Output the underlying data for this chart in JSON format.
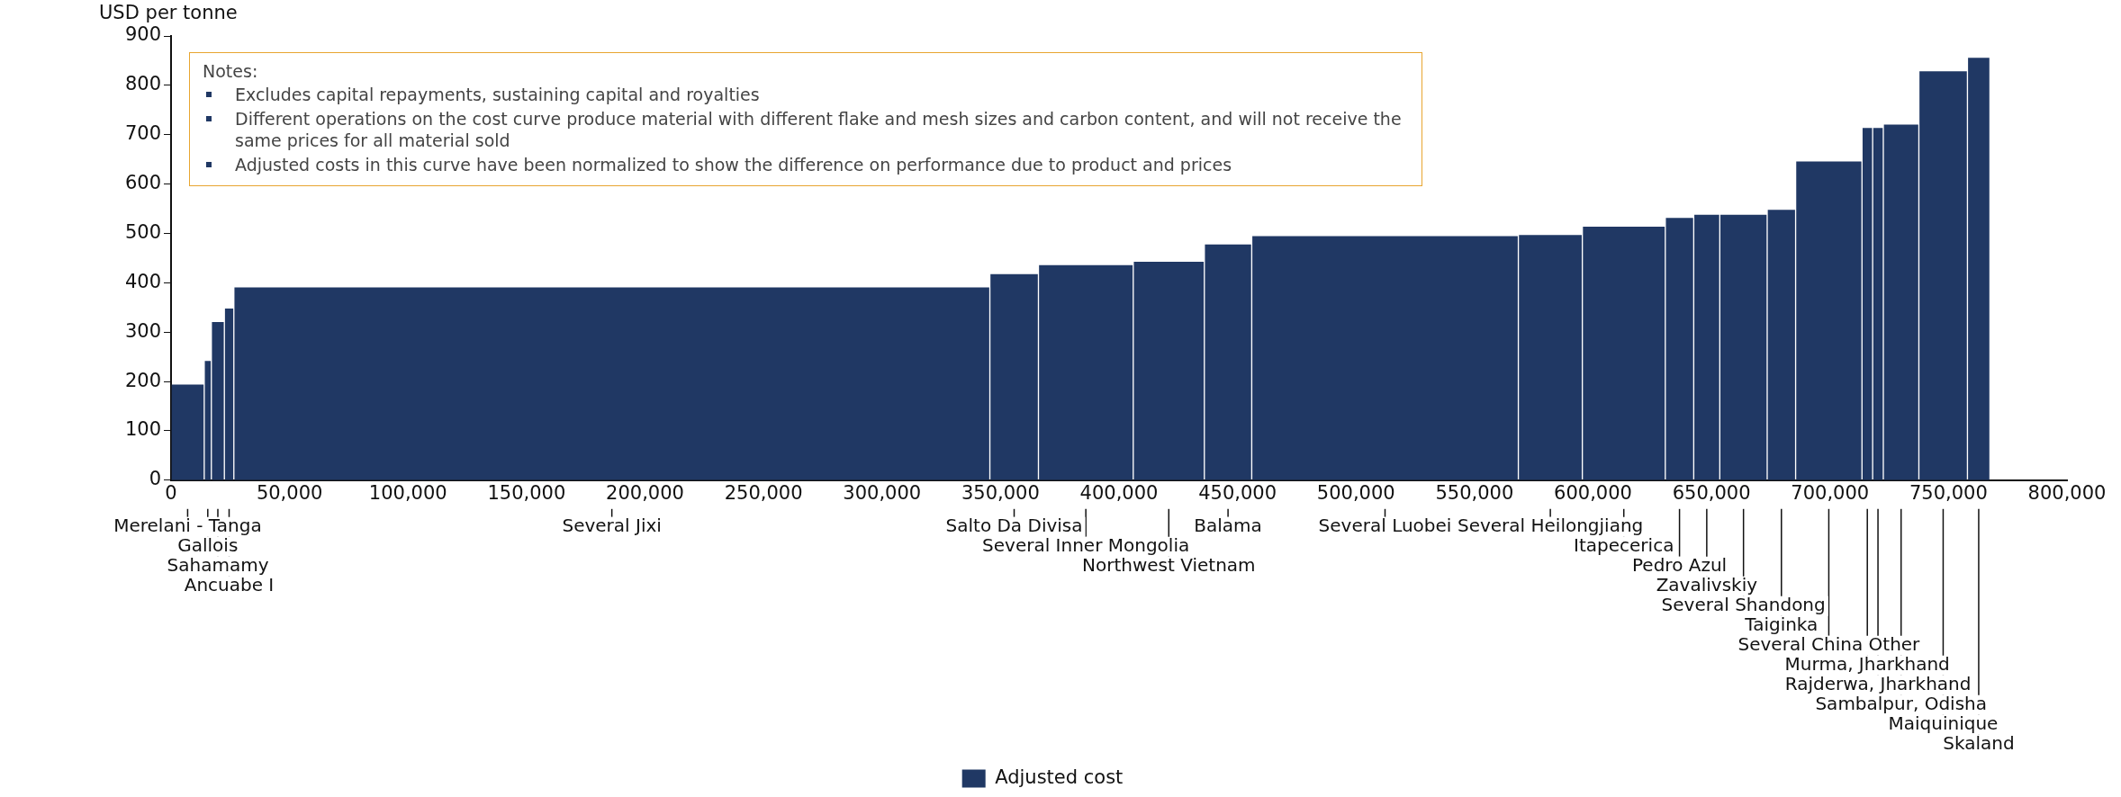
{
  "chart_data": {
    "type": "histogram",
    "ylabel": "USD per tonne",
    "bins": [
      0,
      14000,
      17000,
      22500,
      26500,
      345500,
      366000,
      406000,
      436000,
      456000,
      568500,
      595500,
      630500,
      642500,
      653500,
      673500,
      685500,
      713500,
      718000,
      722500,
      737500,
      758000,
      767500
    ],
    "series": [
      {
        "name": "Adjusted cost",
        "color": "#203864",
        "values": [
          193,
          241,
          320,
          347,
          390,
          417,
          435,
          442,
          477,
          494,
          496,
          513,
          531,
          537,
          537,
          547,
          645,
          713,
          713,
          720,
          828,
          855
        ]
      }
    ],
    "xlim": [
      0,
      800000
    ],
    "xticks": [
      0,
      {
        "value": 50000,
        "label": "50,000"
      },
      {
        "value": 100000,
        "label": "100,000"
      },
      {
        "value": 150000,
        "label": "150,000"
      },
      {
        "value": 200000,
        "label": "200,000"
      },
      {
        "value": 250000,
        "label": "250,000"
      },
      {
        "value": 300000,
        "label": "300,000"
      },
      {
        "value": 350000,
        "label": "350,000"
      },
      {
        "value": 400000,
        "label": "400,000"
      },
      {
        "value": 450000,
        "label": "450,000"
      },
      {
        "value": 500000,
        "label": "500,000"
      },
      {
        "value": 550000,
        "label": "550,000"
      },
      {
        "value": 600000,
        "label": "600,000"
      },
      {
        "value": 650000,
        "label": "650,000"
      },
      {
        "value": 700000,
        "label": "700,000"
      },
      {
        "value": 750000,
        "label": "750,000"
      },
      {
        "value": 800000,
        "label": "800,000"
      }
    ],
    "ylim": [
      0,
      900
    ],
    "yticks": [
      0,
      100,
      200,
      300,
      400,
      500,
      600,
      700,
      800,
      900
    ],
    "grid": false,
    "legend": "bottom",
    "annotations": [
      "Notes:",
      "Excludes capital repayments, sustaining capital and royalties",
      "Different operations on the cost curve produce material with different flake and mesh sizes and carbon content, and will not receive the same prices for all material sold",
      "Adjusted costs in this curve have been normalized to show the difference on performance due to product and prices",
      {
        "text": "Merelani - Tanga",
        "x": 7000
      },
      {
        "text": "Gallois",
        "x": 15500
      },
      {
        "text": "Sahamamy",
        "x": 19750
      },
      {
        "text": "Ancuabe I",
        "x": 24500
      },
      {
        "text": "Several Jixi",
        "x": 186000
      },
      {
        "text": "Salto Da Divisa",
        "x": 355750
      },
      {
        "text": "Several Inner Mongolia",
        "x": 386000
      },
      {
        "text": "Northwest Vietnam",
        "x": 421000
      },
      {
        "text": "Balama",
        "x": 446000
      },
      {
        "text": "Several Luobei",
        "x": 512250
      },
      {
        "text": "Several Heilongjiang",
        "x": 582000
      },
      {
        "text": "Itapecerica",
        "x": 613000
      },
      {
        "text": "Pedro Azul",
        "x": 636500
      },
      {
        "text": "Zavalivskiy",
        "x": 648000
      },
      {
        "text": "Several Shandong",
        "x": 663500
      },
      {
        "text": "Taiginka",
        "x": 679500
      },
      {
        "text": "Several China Other",
        "x": 699500
      },
      {
        "text": "Murma, Jharkhand",
        "x": 715750
      },
      {
        "text": "Rajderwa, Jharkhand",
        "x": 720250
      },
      {
        "text": "Sambalpur, Odisha",
        "x": 730000
      },
      {
        "text": "Maiquinique",
        "x": 747750
      },
      {
        "text": "Skaland",
        "x": 762750
      }
    ]
  }
}
